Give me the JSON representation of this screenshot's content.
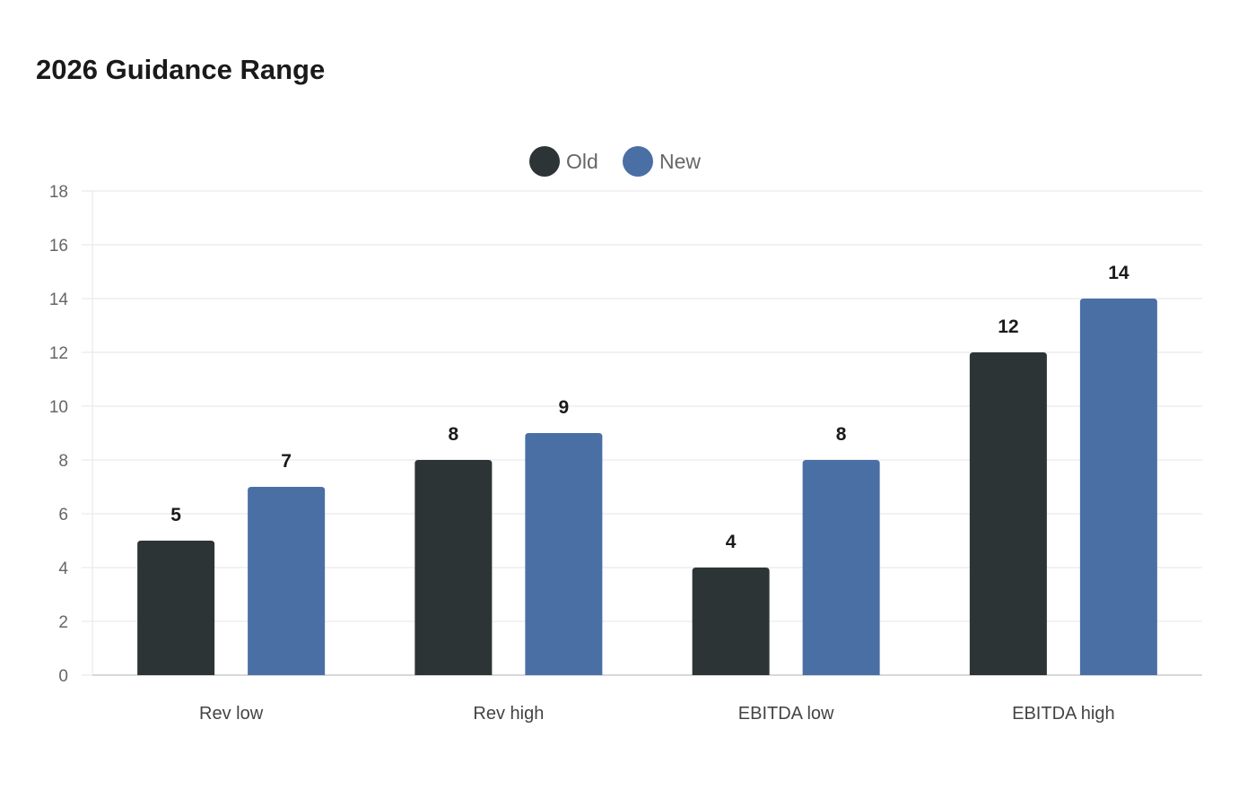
{
  "chart_data": {
    "type": "bar",
    "title": "2026 Guidance Range",
    "categories": [
      "Rev low",
      "Rev high",
      "EBITDA low",
      "EBITDA high"
    ],
    "series": [
      {
        "name": "Old",
        "color": "#2d3436",
        "values": [
          5,
          8,
          4,
          12
        ]
      },
      {
        "name": "New",
        "color": "#4a6fa5",
        "values": [
          7,
          9,
          8,
          14
        ]
      }
    ],
    "ylim": [
      0,
      18
    ],
    "yticks": [
      0,
      2,
      4,
      6,
      8,
      10,
      12,
      14,
      16,
      18
    ],
    "grid": true,
    "legend_position": "top-center",
    "data_labels": true
  }
}
